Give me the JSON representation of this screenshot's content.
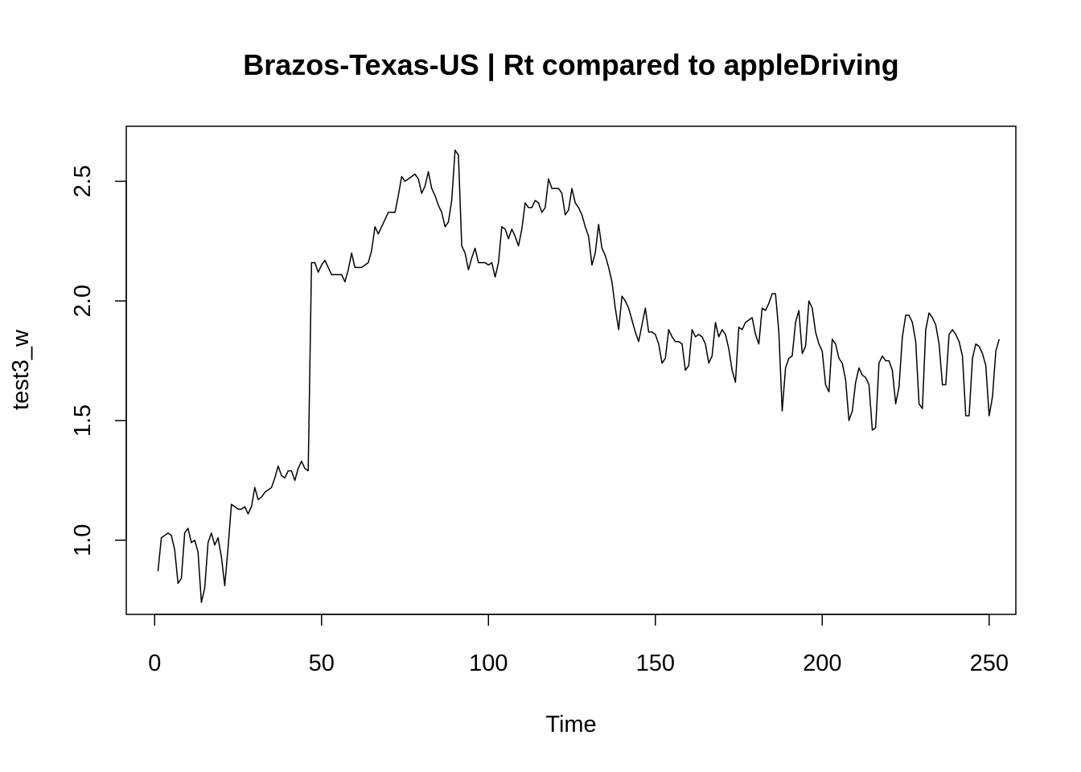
{
  "chart_data": {
    "type": "line",
    "title": "Brazos-Texas-US | Rt compared to appleDriving",
    "xlabel": "Time",
    "ylabel": "test3_w",
    "xlim": [
      -8.5,
      258
    ],
    "ylim": [
      0.69,
      2.73
    ],
    "x_ticks": [
      0,
      50,
      100,
      150,
      200,
      250
    ],
    "y_ticks": [
      1.0,
      1.5,
      2.0,
      2.5
    ],
    "x_tick_labels": [
      "0",
      "50",
      "100",
      "150",
      "200",
      "250"
    ],
    "y_tick_labels": [
      "1.0",
      "1.5",
      "2.0",
      "2.5"
    ],
    "grid": false,
    "legend": "none",
    "series_color": "#000000",
    "x_start": 1,
    "x_step": 1,
    "values": [
      0.87,
      1.01,
      1.02,
      1.03,
      1.02,
      0.96,
      0.82,
      0.84,
      1.03,
      1.05,
      0.99,
      1.0,
      0.95,
      0.74,
      0.8,
      0.99,
      1.03,
      0.98,
      1.01,
      0.93,
      0.81,
      0.97,
      1.15,
      1.14,
      1.13,
      1.13,
      1.14,
      1.11,
      1.14,
      1.22,
      1.17,
      1.18,
      1.2,
      1.21,
      1.22,
      1.26,
      1.31,
      1.27,
      1.26,
      1.29,
      1.29,
      1.25,
      1.3,
      1.33,
      1.3,
      1.29,
      2.16,
      2.16,
      2.12,
      2.15,
      2.17,
      2.14,
      2.11,
      2.11,
      2.11,
      2.11,
      2.08,
      2.13,
      2.2,
      2.14,
      2.14,
      2.14,
      2.15,
      2.16,
      2.21,
      2.31,
      2.28,
      2.31,
      2.34,
      2.37,
      2.37,
      2.37,
      2.44,
      2.52,
      2.5,
      2.51,
      2.52,
      2.53,
      2.51,
      2.45,
      2.48,
      2.54,
      2.47,
      2.44,
      2.4,
      2.37,
      2.31,
      2.33,
      2.42,
      2.63,
      2.61,
      2.23,
      2.2,
      2.13,
      2.18,
      2.22,
      2.16,
      2.16,
      2.16,
      2.15,
      2.16,
      2.1,
      2.16,
      2.31,
      2.3,
      2.26,
      2.3,
      2.27,
      2.23,
      2.3,
      2.41,
      2.39,
      2.39,
      2.42,
      2.41,
      2.37,
      2.39,
      2.51,
      2.47,
      2.47,
      2.47,
      2.45,
      2.36,
      2.38,
      2.47,
      2.41,
      2.39,
      2.36,
      2.31,
      2.27,
      2.15,
      2.2,
      2.32,
      2.22,
      2.19,
      2.14,
      2.08,
      1.97,
      1.88,
      2.02,
      2.0,
      1.97,
      1.92,
      1.87,
      1.83,
      1.9,
      1.97,
      1.87,
      1.87,
      1.86,
      1.82,
      1.74,
      1.76,
      1.88,
      1.85,
      1.83,
      1.83,
      1.82,
      1.71,
      1.73,
      1.88,
      1.85,
      1.86,
      1.85,
      1.82,
      1.74,
      1.77,
      1.91,
      1.85,
      1.88,
      1.86,
      1.8,
      1.71,
      1.66,
      1.89,
      1.88,
      1.91,
      1.92,
      1.93,
      1.86,
      1.82,
      1.97,
      1.96,
      1.99,
      2.03,
      2.03,
      1.87,
      1.54,
      1.72,
      1.76,
      1.77,
      1.91,
      1.96,
      1.78,
      1.81,
      2.0,
      1.97,
      1.87,
      1.82,
      1.79,
      1.65,
      1.62,
      1.84,
      1.82,
      1.76,
      1.74,
      1.67,
      1.5,
      1.54,
      1.66,
      1.72,
      1.69,
      1.68,
      1.65,
      1.46,
      1.47,
      1.74,
      1.77,
      1.75,
      1.75,
      1.71,
      1.57,
      1.64,
      1.85,
      1.94,
      1.94,
      1.91,
      1.83,
      1.57,
      1.55,
      1.88,
      1.95,
      1.93,
      1.9,
      1.82,
      1.65,
      1.65,
      1.86,
      1.88,
      1.86,
      1.83,
      1.77,
      1.52,
      1.52,
      1.76,
      1.82,
      1.81,
      1.78,
      1.73,
      1.52,
      1.6,
      1.79,
      1.84
    ]
  }
}
